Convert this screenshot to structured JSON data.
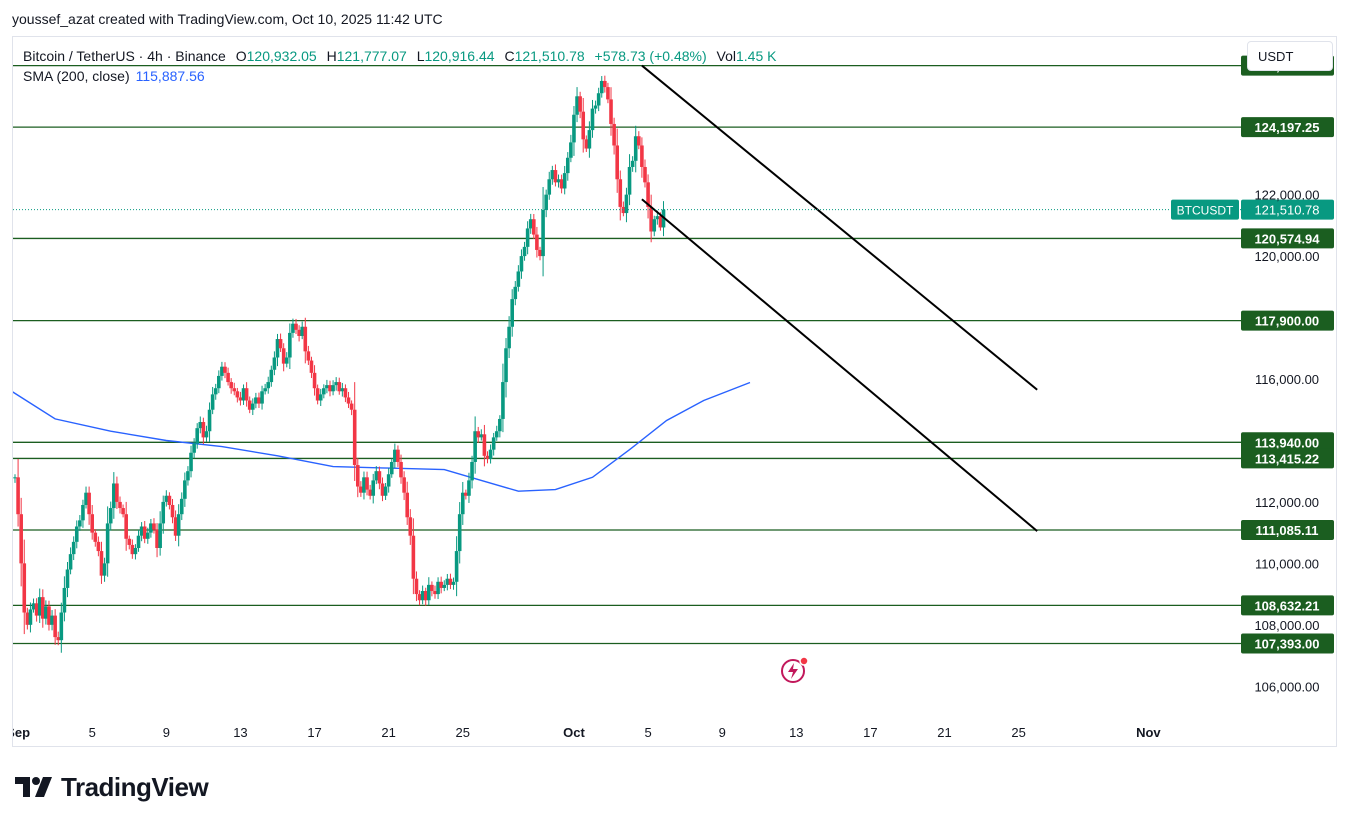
{
  "header": {
    "attribution": "youssef_azat created with TradingView.com, Oct 10, 2025 11:42 UTC"
  },
  "legend": {
    "symbol": "Bitcoin / TetherUS · 4h · Binance",
    "open_label": "O",
    "open": "120,932.05",
    "high_label": "H",
    "high": "121,777.07",
    "low_label": "L",
    "low": "120,916.44",
    "close_label": "C",
    "close": "121,510.78",
    "change": "+578.73 (+0.48%)",
    "vol_label": "Vol",
    "vol": "1.45 K",
    "sma_label": "SMA (200, close)",
    "sma_value": "115,887.56"
  },
  "currency_button": "USDT",
  "brand": {
    "name": "TradingView"
  },
  "icons": {
    "logo": "tradingview-logo-icon",
    "flash": "flash-icon"
  },
  "colors": {
    "up": "#089981",
    "down": "#f23645",
    "level_line": "#1b5e20",
    "level_label_bg": "#1b5e20",
    "sma": "#2962ff",
    "price_label_bg": "#089981",
    "channel": "#000000"
  },
  "chart_data": {
    "type": "candlestick",
    "symbol_tag": "BTCUSDT",
    "last_price": 121510.78,
    "last_price_label": "121,510.78",
    "ylim": [
      105000,
      127000
    ],
    "y_ticks": [
      {
        "value": 106000,
        "label": "106,000.00"
      },
      {
        "value": 108000,
        "label": "108,000.00"
      },
      {
        "value": 110000,
        "label": "110,000.00"
      },
      {
        "value": 112000,
        "label": "112,000.00"
      },
      {
        "value": 116000,
        "label": "116,000.00"
      },
      {
        "value": 120000,
        "label": "120,000.00"
      },
      {
        "value": 122000,
        "label": "122,000.00"
      }
    ],
    "x_ticks": [
      {
        "date": "2025-09-01",
        "label": "Sep",
        "bold": true
      },
      {
        "date": "2025-09-05",
        "label": "5"
      },
      {
        "date": "2025-09-09",
        "label": "9"
      },
      {
        "date": "2025-09-13",
        "label": "13"
      },
      {
        "date": "2025-09-17",
        "label": "17"
      },
      {
        "date": "2025-09-21",
        "label": "21"
      },
      {
        "date": "2025-09-25",
        "label": "25"
      },
      {
        "date": "2025-10-01",
        "label": "Oct",
        "bold": true
      },
      {
        "date": "2025-10-05",
        "label": "5"
      },
      {
        "date": "2025-10-09",
        "label": "9"
      },
      {
        "date": "2025-10-13",
        "label": "13"
      },
      {
        "date": "2025-10-17",
        "label": "17"
      },
      {
        "date": "2025-10-21",
        "label": "21"
      },
      {
        "date": "2025-10-25",
        "label": "25"
      },
      {
        "date": "2025-11-01",
        "label": "Nov",
        "bold": true
      }
    ],
    "horizontal_levels": [
      {
        "value": 126199.63,
        "label": "126,199.63"
      },
      {
        "value": 124197.25,
        "label": "124,197.25"
      },
      {
        "value": 120574.94,
        "label": "120,574.94"
      },
      {
        "value": 117900.0,
        "label": "117,900.00"
      },
      {
        "value": 113940.0,
        "label": "113,940.00"
      },
      {
        "value": 113415.22,
        "label": "113,415.22"
      },
      {
        "value": 111085.11,
        "label": "111,085.11"
      },
      {
        "value": 108632.21,
        "label": "108,632.21"
      },
      {
        "value": 107393.0,
        "label": "107,393.00"
      }
    ],
    "channel_lines": [
      {
        "start": {
          "date": "2025-10-04 16:00",
          "price": 126200
        },
        "end": {
          "date": "2025-10-26 00:00",
          "price": 115650
        }
      },
      {
        "start": {
          "date": "2025-10-04 16:00",
          "price": 121850
        },
        "end": {
          "date": "2025-10-26 00:00",
          "price": 111050
        }
      }
    ],
    "sma_series": {
      "name": "SMA (200, close)",
      "points": [
        [
          "2025-08-31 00:00",
          115850
        ],
        [
          "2025-09-03 00:00",
          114700
        ],
        [
          "2025-09-06 00:00",
          114300
        ],
        [
          "2025-09-09 00:00",
          114000
        ],
        [
          "2025-09-12 00:00",
          113800
        ],
        [
          "2025-09-15 00:00",
          113500
        ],
        [
          "2025-09-18 00:00",
          113150
        ],
        [
          "2025-09-21 00:00",
          113100
        ],
        [
          "2025-09-24 00:00",
          113050
        ],
        [
          "2025-09-26 00:00",
          112700
        ],
        [
          "2025-09-28 00:00",
          112350
        ],
        [
          "2025-09-30 00:00",
          112400
        ],
        [
          "2025-10-02 00:00",
          112800
        ],
        [
          "2025-10-04 00:00",
          113700
        ],
        [
          "2025-10-06 00:00",
          114650
        ],
        [
          "2025-10-08 00:00",
          115300
        ],
        [
          "2025-10-10 12:00",
          115887.56
        ]
      ]
    },
    "candle_series": {
      "start": "2025-08-31 20:00",
      "interval_hours": 4,
      "open": 112800,
      "closes": [
        112800,
        111600,
        110000,
        108400,
        108000,
        108500,
        108700,
        108300,
        108900,
        108200,
        108600,
        108000,
        108300,
        107600,
        107500,
        108400,
        109200,
        109800,
        110300,
        110700,
        111200,
        111400,
        111900,
        112300,
        111600,
        111000,
        110700,
        110400,
        109600,
        110000,
        111300,
        111800,
        112600,
        112000,
        111800,
        111600,
        110800,
        110600,
        110300,
        110500,
        110900,
        111200,
        110800,
        111000,
        111300,
        111100,
        110500,
        111300,
        112000,
        112200,
        111900,
        111500,
        110900,
        111600,
        112100,
        112700,
        113000,
        113600,
        113900,
        114400,
        114600,
        114100,
        114300,
        115000,
        115500,
        115700,
        116100,
        116400,
        116200,
        115900,
        115700,
        115600,
        115400,
        115300,
        115700,
        115300,
        115000,
        115200,
        115400,
        115200,
        115600,
        115700,
        115900,
        116300,
        116700,
        117300,
        117000,
        116500,
        116700,
        117500,
        117800,
        117600,
        117400,
        117700,
        116900,
        116600,
        116200,
        115700,
        115300,
        115500,
        115700,
        115800,
        115600,
        115800,
        115900,
        115600,
        115700,
        115400,
        115200,
        115000,
        113200,
        112500,
        112300,
        112800,
        112400,
        112200,
        112700,
        113000,
        112600,
        112200,
        112500,
        112900,
        113300,
        113700,
        113300,
        112800,
        112300,
        111500,
        110900,
        109500,
        109000,
        108800,
        109100,
        108800,
        109300,
        109100,
        109000,
        109400,
        109200,
        109300,
        109500,
        109300,
        109400,
        110400,
        111600,
        112300,
        112200,
        112700,
        113300,
        114300,
        114100,
        114200,
        113500,
        113400,
        113700,
        114100,
        114300,
        114700,
        115900,
        117000,
        117700,
        118600,
        119000,
        119500,
        120000,
        120300,
        120900,
        121200,
        120700,
        120200,
        120000,
        121500,
        122000,
        122500,
        122800,
        122400,
        122500,
        122200,
        122700,
        123200,
        123700,
        124600,
        125200,
        124700,
        123800,
        123500,
        124100,
        124800,
        124900,
        125300,
        125700,
        125500,
        125100,
        124300,
        123600,
        122500,
        121600,
        121400,
        122000,
        122900,
        123100,
        123900,
        123600,
        122900,
        122400,
        121600,
        120800,
        121200,
        121300,
        120932.05,
        121510.78
      ]
    }
  }
}
